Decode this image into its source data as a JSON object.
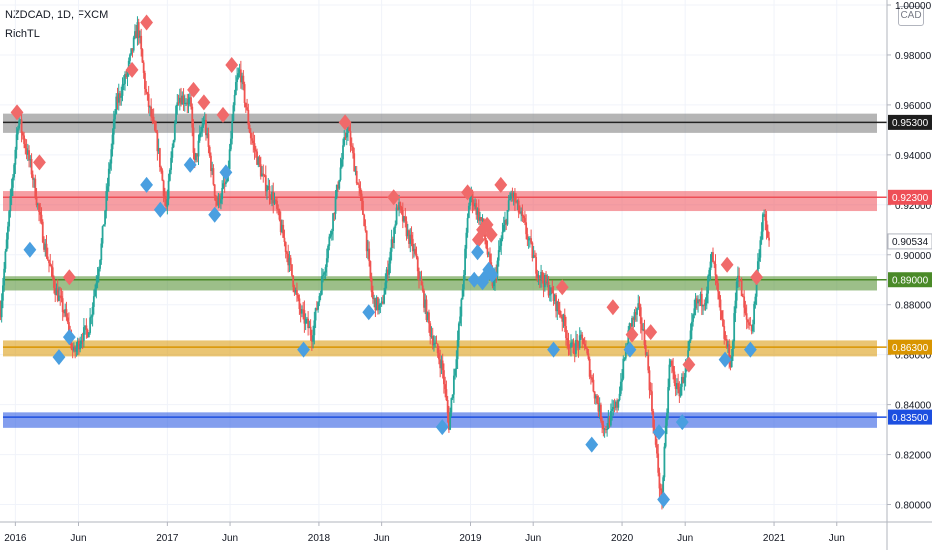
{
  "header": {
    "symbol_line": "NZDCAD, 1D, FXCM",
    "indicator": "RichTL",
    "currency_button": "CAD"
  },
  "colors": {
    "up": "#26a69a",
    "down": "#ef5350",
    "marker_high": "#f06a6a",
    "marker_low": "#4a9fe0"
  },
  "chart_data": {
    "type": "candlestick",
    "title": "NZDCAD, 1D, FXCM",
    "x_tick_labels": [
      "2016",
      "Jun",
      "2017",
      "Jun",
      "2018",
      "Jun",
      "2019",
      "Jun",
      "2020",
      "Jun",
      "2021",
      "Jun"
    ],
    "y_tick_labels": [
      "0.80000",
      "0.82000",
      "0.84000",
      "0.86000",
      "0.88000",
      "0.90000",
      "0.92000",
      "0.94000",
      "0.96000",
      "0.98000",
      "1.00000"
    ],
    "ylim": [
      0.793,
      1.002
    ],
    "xlim": [
      "2015-11-25",
      "2021-09-30"
    ],
    "last_price": "0.90534",
    "price_path": [
      [
        "2015-11-26",
        0.878
      ],
      [
        "2016-01-08",
        0.955
      ],
      [
        "2016-02-10",
        0.933
      ],
      [
        "2016-03-10",
        0.905
      ],
      [
        "2016-04-05",
        0.887
      ],
      [
        "2016-05-02",
        0.875
      ],
      [
        "2016-05-20",
        0.86
      ],
      [
        "2016-06-10",
        0.868
      ],
      [
        "2016-06-25",
        0.87
      ],
      [
        "2016-07-25",
        0.902
      ],
      [
        "2016-08-30",
        0.96
      ],
      [
        "2016-09-25",
        0.972
      ],
      [
        "2016-10-22",
        0.992
      ],
      [
        "2016-11-10",
        0.965
      ],
      [
        "2016-12-08",
        0.944
      ],
      [
        "2016-12-30",
        0.918
      ],
      [
        "2017-01-25",
        0.964
      ],
      [
        "2017-02-25",
        0.961
      ],
      [
        "2017-03-08",
        0.936
      ],
      [
        "2017-03-30",
        0.955
      ],
      [
        "2017-04-30",
        0.92
      ],
      [
        "2017-05-25",
        0.93
      ],
      [
        "2017-06-15",
        0.968
      ],
      [
        "2017-06-25",
        0.974
      ],
      [
        "2017-07-20",
        0.948
      ],
      [
        "2017-08-20",
        0.93
      ],
      [
        "2017-09-15",
        0.922
      ],
      [
        "2017-10-20",
        0.898
      ],
      [
        "2017-11-15",
        0.878
      ],
      [
        "2017-12-15",
        0.868
      ],
      [
        "2018-01-25",
        0.905
      ],
      [
        "2018-03-10",
        0.952
      ],
      [
        "2018-04-20",
        0.914
      ],
      [
        "2018-05-10",
        0.882
      ],
      [
        "2018-05-31",
        0.878
      ],
      [
        "2018-07-10",
        0.92
      ],
      [
        "2018-08-20",
        0.9
      ],
      [
        "2018-09-25",
        0.87
      ],
      [
        "2018-10-25",
        0.855
      ],
      [
        "2018-11-10",
        0.832
      ],
      [
        "2018-12-10",
        0.88
      ],
      [
        "2018-12-30",
        0.925
      ],
      [
        "2019-01-30",
        0.912
      ],
      [
        "2019-02-25",
        0.887
      ],
      [
        "2019-03-15",
        0.905
      ],
      [
        "2019-04-10",
        0.925
      ],
      [
        "2019-05-10",
        0.912
      ],
      [
        "2019-06-10",
        0.894
      ],
      [
        "2019-07-10",
        0.886
      ],
      [
        "2019-08-10",
        0.875
      ],
      [
        "2019-08-30",
        0.862
      ],
      [
        "2019-09-30",
        0.866
      ],
      [
        "2019-10-25",
        0.846
      ],
      [
        "2019-11-20",
        0.83
      ],
      [
        "2019-12-20",
        0.84
      ],
      [
        "2020-01-20",
        0.872
      ],
      [
        "2020-02-10",
        0.878
      ],
      [
        "2020-02-28",
        0.862
      ],
      [
        "2020-03-18",
        0.83
      ],
      [
        "2020-04-05",
        0.8
      ],
      [
        "2020-04-25",
        0.858
      ],
      [
        "2020-05-15",
        0.844
      ],
      [
        "2020-06-05",
        0.856
      ],
      [
        "2020-06-25",
        0.88
      ],
      [
        "2020-07-20",
        0.883
      ],
      [
        "2020-08-05",
        0.9
      ],
      [
        "2020-08-30",
        0.87
      ],
      [
        "2020-09-20",
        0.856
      ],
      [
        "2020-10-05",
        0.895
      ],
      [
        "2020-10-25",
        0.874
      ],
      [
        "2020-11-10",
        0.871
      ],
      [
        "2020-11-25",
        0.9
      ],
      [
        "2020-12-05",
        0.916
      ],
      [
        "2020-12-20",
        0.905
      ]
    ],
    "support_resistance_zones": [
      {
        "level": 0.953,
        "label": "0.95300",
        "color": "#787878",
        "band": [
          0.9488,
          0.9565
        ]
      },
      {
        "level": 0.923,
        "label": "0.92300",
        "color": "#ee4f57",
        "band": [
          0.9175,
          0.9255
        ]
      },
      {
        "level": 0.89,
        "label": "0.89000",
        "color": "#4a8a28",
        "band": [
          0.8857,
          0.8914
        ]
      },
      {
        "level": 0.863,
        "label": "0.86300",
        "color": "#d99500",
        "band": [
          0.8593,
          0.8657
        ]
      },
      {
        "level": 0.835,
        "label": "0.83500",
        "color": "#1d4fe0",
        "band": [
          0.8307,
          0.8369
        ]
      }
    ],
    "swing_high_markers": [
      [
        "2016-01-05",
        0.957
      ],
      [
        "2016-02-28",
        0.937
      ],
      [
        "2016-05-10",
        0.891
      ],
      [
        "2016-10-08",
        0.974
      ],
      [
        "2016-11-12",
        0.993
      ],
      [
        "2017-03-05",
        0.966
      ],
      [
        "2017-03-30",
        0.961
      ],
      [
        "2017-05-15",
        0.956
      ],
      [
        "2017-06-05",
        0.976
      ],
      [
        "2018-03-05",
        0.953
      ],
      [
        "2018-06-30",
        0.923
      ],
      [
        "2018-12-25",
        0.925
      ],
      [
        "2019-01-20",
        0.906
      ],
      [
        "2019-01-30",
        0.91
      ],
      [
        "2019-02-10",
        0.912
      ],
      [
        "2019-02-20",
        0.908
      ],
      [
        "2019-03-15",
        0.928
      ],
      [
        "2019-08-10",
        0.887
      ],
      [
        "2019-12-10",
        0.879
      ],
      [
        "2020-01-25",
        0.868
      ],
      [
        "2020-03-10",
        0.869
      ],
      [
        "2020-06-10",
        0.856
      ],
      [
        "2020-09-10",
        0.896
      ],
      [
        "2020-11-20",
        0.891
      ]
    ],
    "swing_low_markers": [
      [
        "2016-02-05",
        0.902
      ],
      [
        "2016-04-15",
        0.859
      ],
      [
        "2016-05-10",
        0.867
      ],
      [
        "2016-11-12",
        0.928
      ],
      [
        "2016-12-15",
        0.918
      ],
      [
        "2017-02-25",
        0.936
      ],
      [
        "2017-04-25",
        0.916
      ],
      [
        "2017-05-22",
        0.933
      ],
      [
        "2017-11-25",
        0.862
      ],
      [
        "2018-05-01",
        0.877
      ],
      [
        "2018-10-25",
        0.831
      ],
      [
        "2019-01-10",
        0.89
      ],
      [
        "2019-01-18",
        0.901
      ],
      [
        "2019-01-30",
        0.889
      ],
      [
        "2019-02-05",
        0.891
      ],
      [
        "2019-02-14",
        0.894
      ],
      [
        "2019-02-22",
        0.892
      ],
      [
        "2019-07-20",
        0.862
      ],
      [
        "2019-10-20",
        0.824
      ],
      [
        "2020-01-20",
        0.862
      ],
      [
        "2020-03-30",
        0.829
      ],
      [
        "2020-04-10",
        0.802
      ],
      [
        "2020-05-25",
        0.833
      ],
      [
        "2020-09-05",
        0.858
      ],
      [
        "2020-11-05",
        0.862
      ]
    ]
  }
}
